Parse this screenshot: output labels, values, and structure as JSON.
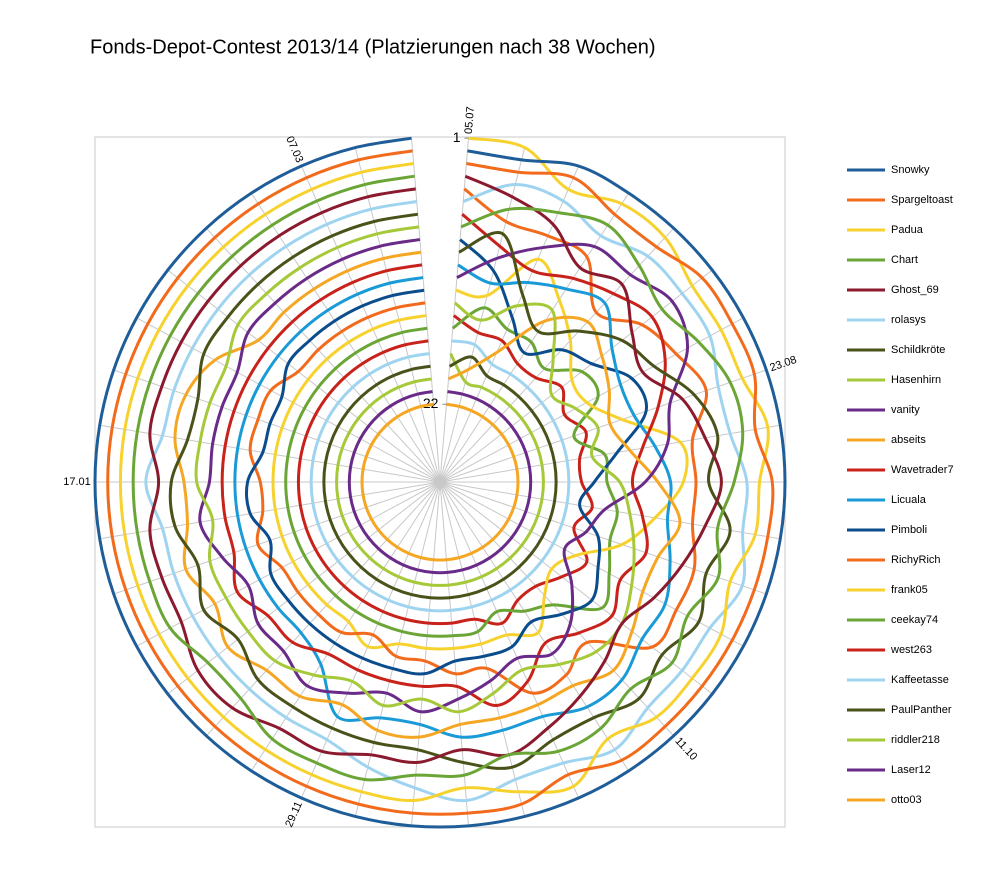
{
  "chart_data": {
    "type": "radar",
    "title": "Fonds-Depot-Contest 2013/14 (Platzierungen nach 38 Wochen)",
    "categories": [
      "05.07",
      null,
      null,
      null,
      null,
      null,
      null,
      "23.08",
      null,
      null,
      null,
      null,
      null,
      null,
      "11.10",
      null,
      null,
      null,
      null,
      null,
      null,
      "29.11",
      null,
      null,
      null,
      null,
      null,
      null,
      "17.01",
      null,
      null,
      null,
      null,
      null,
      null,
      "07.03",
      null,
      null
    ],
    "ylim": [
      1,
      22
    ],
    "yticks": [
      1,
      22
    ],
    "grid": true,
    "series": [
      {
        "name": "Snowky",
        "color": "#1f5d99",
        "values": [
          2,
          2,
          1,
          1,
          1,
          1,
          1,
          1,
          1,
          1,
          1,
          1,
          1,
          1,
          1,
          1,
          1,
          1,
          1,
          1,
          1,
          1,
          1,
          1,
          1,
          1,
          1,
          1,
          1,
          1,
          1,
          1,
          1,
          1,
          1,
          1,
          1,
          1
        ]
      },
      {
        "name": "Spargeltoast",
        "color": "#f26b1d",
        "values": [
          3,
          3,
          2,
          3,
          3,
          2,
          2,
          2,
          3,
          2,
          2,
          2,
          2,
          2,
          2,
          2,
          3,
          2,
          2,
          2,
          2,
          2,
          2,
          2,
          2,
          2,
          2,
          2,
          2,
          2,
          2,
          2,
          2,
          2,
          2,
          2,
          2,
          2
        ]
      },
      {
        "name": "Padua",
        "color": "#f7d22e",
        "values": [
          1,
          1,
          3,
          2,
          2,
          3,
          3,
          3,
          2,
          3,
          3,
          4,
          3,
          3,
          3,
          4,
          2,
          3,
          4,
          3,
          3,
          3,
          3,
          3,
          3,
          3,
          3,
          3,
          3,
          3,
          3,
          3,
          3,
          3,
          3,
          3,
          3,
          3
        ]
      },
      {
        "name": "Chart",
        "color": "#6aa536",
        "values": [
          8,
          6,
          5,
          4,
          5,
          6,
          5,
          4,
          4,
          5,
          6,
          5,
          6,
          5,
          6,
          5,
          5,
          6,
          5,
          5,
          4,
          4,
          4,
          5,
          5,
          4,
          4,
          4,
          4,
          4,
          4,
          4,
          4,
          4,
          4,
          4,
          4,
          4
        ]
      },
      {
        "name": "Ghost_69",
        "color": "#8b1a2e",
        "values": [
          4,
          5,
          6,
          8,
          7,
          9,
          10,
          8,
          7,
          6,
          7,
          8,
          9,
          10,
          9,
          8,
          7,
          6,
          7,
          6,
          6,
          5,
          5,
          4,
          4,
          5,
          5,
          5,
          6,
          5,
          5,
          5,
          5,
          5,
          5,
          5,
          5,
          5
        ]
      },
      {
        "name": "rolasys",
        "color": "#9fd4f0",
        "values": [
          6,
          4,
          4,
          5,
          4,
          4,
          4,
          5,
          5,
          4,
          4,
          3,
          4,
          4,
          4,
          3,
          4,
          4,
          3,
          4,
          5,
          6,
          6,
          6,
          6,
          6,
          6,
          6,
          5,
          6,
          6,
          6,
          6,
          6,
          6,
          6,
          6,
          6
        ]
      },
      {
        "name": "Schildkröte",
        "color": "#4a5219",
        "values": [
          10,
          8,
          12,
          14,
          12,
          10,
          9,
          7,
          6,
          7,
          5,
          6,
          5,
          6,
          5,
          6,
          6,
          5,
          6,
          7,
          7,
          7,
          7,
          7,
          8,
          7,
          8,
          7,
          7,
          8,
          8,
          7,
          7,
          7,
          7,
          7,
          7,
          7
        ]
      },
      {
        "name": "Hasenhirn",
        "color": "#a6c93a",
        "values": [
          14,
          15,
          13,
          12,
          15,
          17,
          16,
          15,
          16,
          14,
          13,
          12,
          11,
          10,
          10,
          11,
          12,
          11,
          10,
          11,
          10,
          11,
          10,
          9,
          9,
          9,
          9,
          10,
          9,
          9,
          9,
          9,
          8,
          8,
          8,
          8,
          8,
          8
        ]
      },
      {
        "name": "vanity",
        "color": "#6a2a88",
        "values": [
          12,
          10,
          8,
          6,
          6,
          5,
          6,
          9,
          10,
          12,
          15,
          16,
          17,
          15,
          13,
          12,
          13,
          12,
          11,
          10,
          11,
          10,
          9,
          10,
          10,
          11,
          10,
          9,
          10,
          10,
          10,
          10,
          9,
          9,
          9,
          9,
          9,
          9
        ]
      },
      {
        "name": "abseits",
        "color": "#f5a623",
        "values": [
          20,
          19,
          17,
          13,
          11,
          12,
          13,
          14,
          13,
          11,
          9,
          10,
          10,
          9,
          8,
          9,
          9,
          9,
          9,
          8,
          8,
          9,
          8,
          8,
          7,
          8,
          7,
          8,
          8,
          7,
          7,
          8,
          10,
          10,
          10,
          10,
          10,
          10
        ]
      },
      {
        "name": "Wavetrader7",
        "color": "#c8221b",
        "values": [
          7,
          9,
          10,
          9,
          8,
          7,
          8,
          10,
          12,
          13,
          12,
          11,
          12,
          11,
          12,
          13,
          11,
          10,
          12,
          12,
          12,
          12,
          12,
          11,
          11,
          10,
          11,
          11,
          11,
          11,
          11,
          11,
          11,
          11,
          11,
          11,
          11,
          11
        ]
      },
      {
        "name": "Licuala",
        "color": "#1a9ad6",
        "values": [
          11,
          12,
          11,
          10,
          9,
          11,
          12,
          12,
          11,
          10,
          10,
          9,
          8,
          8,
          7,
          7,
          8,
          8,
          8,
          9,
          9,
          8,
          11,
          12,
          12,
          12,
          12,
          12,
          12,
          12,
          12,
          12,
          12,
          12,
          12,
          12,
          12,
          12
        ]
      },
      {
        "name": "Pimboli",
        "color": "#0b4c8c",
        "values": [
          9,
          11,
          14,
          16,
          14,
          13,
          11,
          11,
          14,
          16,
          17,
          15,
          14,
          13,
          14,
          15,
          14,
          14,
          14,
          13,
          13,
          13,
          13,
          13,
          13,
          13,
          14,
          13,
          13,
          14,
          14,
          14,
          13,
          13,
          13,
          13,
          13,
          13
        ]
      },
      {
        "name": "RichyRich",
        "color": "#f26b1d",
        "values": [
          5,
          7,
          7,
          7,
          10,
          8,
          7,
          6,
          8,
          8,
          8,
          7,
          7,
          7,
          11,
          10,
          10,
          13,
          13,
          14,
          14,
          15,
          14,
          14,
          14,
          14,
          13,
          14,
          14,
          13,
          13,
          13,
          14,
          14,
          14,
          14,
          14,
          14
        ]
      },
      {
        "name": "frank05",
        "color": "#f7d22e",
        "values": [
          13,
          13,
          9,
          11,
          13,
          15,
          15,
          13,
          9,
          9,
          11,
          13,
          16,
          17,
          16,
          14,
          15,
          15,
          15,
          15,
          15,
          14,
          15,
          15,
          15,
          15,
          15,
          15,
          15,
          15,
          15,
          15,
          15,
          15,
          15,
          15,
          15,
          15
        ]
      },
      {
        "name": "ceekay74",
        "color": "#6aa536",
        "values": [
          16,
          14,
          15,
          15,
          16,
          14,
          14,
          17,
          15,
          15,
          14,
          14,
          13,
          12,
          15,
          16,
          17,
          16,
          16,
          16,
          16,
          16,
          16,
          16,
          16,
          16,
          16,
          16,
          16,
          16,
          16,
          16,
          16,
          16,
          16,
          16,
          16,
          16
        ]
      },
      {
        "name": "west263",
        "color": "#c8221b",
        "values": [
          15,
          16,
          16,
          17,
          17,
          16,
          17,
          16,
          17,
          17,
          16,
          17,
          15,
          16,
          17,
          17,
          16,
          17,
          17,
          17,
          17,
          17,
          17,
          17,
          17,
          17,
          17,
          17,
          17,
          17,
          17,
          17,
          17,
          17,
          17,
          17,
          17,
          17
        ]
      },
      {
        "name": "Kaffeetasse",
        "color": "#9fd4f0",
        "values": [
          17,
          17,
          18,
          18,
          18,
          18,
          18,
          18,
          18,
          18,
          18,
          18,
          18,
          18,
          18,
          18,
          18,
          18,
          18,
          18,
          18,
          18,
          18,
          18,
          18,
          18,
          18,
          18,
          18,
          18,
          18,
          18,
          18,
          18,
          18,
          18,
          18,
          18
        ]
      },
      {
        "name": "PaulPanther",
        "color": "#4a5219",
        "values": [
          19,
          18,
          19,
          19,
          19,
          19,
          19,
          19,
          19,
          19,
          19,
          19,
          19,
          19,
          19,
          19,
          19,
          19,
          19,
          19,
          19,
          19,
          19,
          19,
          19,
          19,
          19,
          19,
          19,
          19,
          19,
          19,
          19,
          19,
          19,
          19,
          19,
          19
        ]
      },
      {
        "name": "riddler218",
        "color": "#a6c93a",
        "values": [
          18,
          20,
          20,
          20,
          20,
          20,
          20,
          20,
          20,
          20,
          20,
          20,
          20,
          20,
          20,
          20,
          20,
          20,
          20,
          20,
          20,
          20,
          20,
          20,
          20,
          20,
          20,
          20,
          20,
          20,
          20,
          20,
          20,
          20,
          20,
          20,
          20,
          20
        ]
      },
      {
        "name": "Laser12",
        "color": "#6a2a88",
        "values": [
          21,
          21,
          21,
          21,
          21,
          21,
          21,
          21,
          21,
          21,
          21,
          21,
          21,
          21,
          21,
          21,
          21,
          21,
          21,
          21,
          21,
          21,
          21,
          21,
          21,
          21,
          21,
          21,
          21,
          21,
          21,
          21,
          21,
          21,
          21,
          21,
          21,
          21
        ]
      },
      {
        "name": "otto03",
        "color": "#f5a623",
        "values": [
          22,
          22,
          22,
          22,
          22,
          22,
          22,
          22,
          22,
          22,
          22,
          22,
          22,
          22,
          22,
          22,
          22,
          22,
          22,
          22,
          22,
          22,
          22,
          22,
          22,
          22,
          22,
          22,
          22,
          22,
          22,
          22,
          22,
          22,
          22,
          22,
          22,
          22
        ]
      }
    ]
  }
}
